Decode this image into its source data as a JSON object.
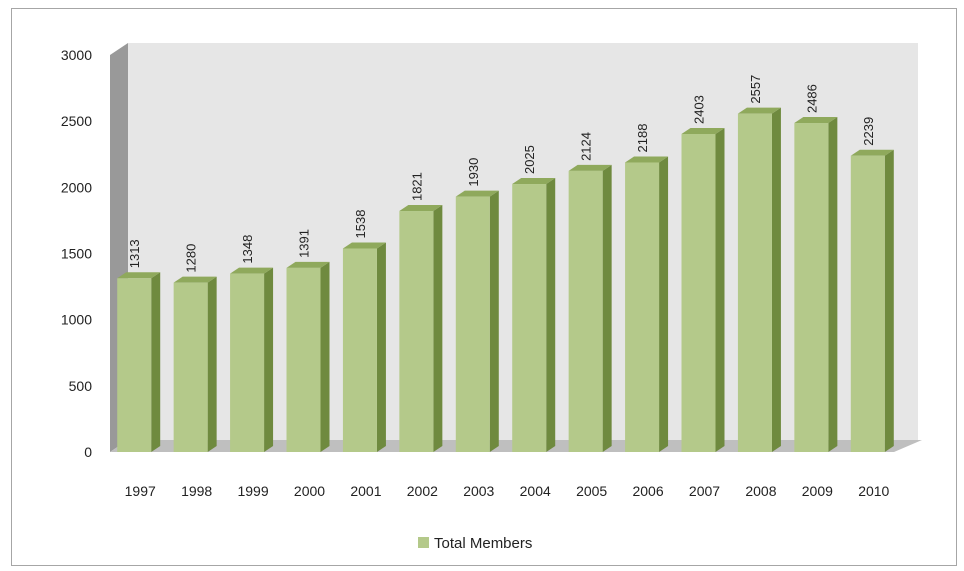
{
  "chart_data": {
    "type": "bar",
    "categories": [
      "1997",
      "1998",
      "1999",
      "2000",
      "2001",
      "2002",
      "2003",
      "2004",
      "2005",
      "2006",
      "2007",
      "2008",
      "2009",
      "2010"
    ],
    "series": [
      {
        "name": "Total Members",
        "values": [
          1313,
          1280,
          1348,
          1391,
          1538,
          1821,
          1930,
          2025,
          2124,
          2188,
          2403,
          2557,
          2486,
          2239
        ]
      }
    ],
    "ylim": [
      0,
      3000
    ],
    "yticks": [
      "0",
      "500",
      "1000",
      "1500",
      "2000",
      "2500",
      "3000"
    ],
    "grid": false,
    "legend_position": "bottom",
    "data_labels": true,
    "three_d": true,
    "colors": {
      "bar_front": "#b4c98a",
      "bar_side": "#6f8a3f",
      "bar_top": "#8fa95c",
      "back_wall": "#e6e6e6",
      "side_wall": "#999999",
      "floor": "#bfbfbf"
    }
  }
}
